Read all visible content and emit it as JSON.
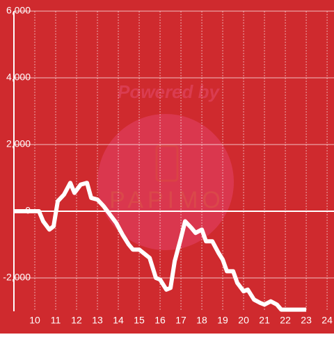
{
  "chart_data": {
    "type": "line",
    "watermark": [
      "Powered by",
      "PAPIMO"
    ],
    "x": [
      9,
      10.2,
      10.4,
      10.7,
      10.9,
      11.1,
      11.4,
      11.7,
      11.9,
      12.2,
      12.5,
      12.7,
      13,
      13.3,
      13.6,
      13.9,
      14.2,
      14.5,
      14.7,
      15,
      15.3,
      15.5,
      15.8,
      16,
      16.3,
      16.5,
      16.7,
      17,
      17.2,
      17.5,
      17.7,
      18,
      18.2,
      18.5,
      18.8,
      19,
      19.2,
      19.5,
      19.7,
      20,
      20.2,
      20.5,
      20.8,
      21,
      21.3,
      21.6,
      21.8,
      22,
      23
    ],
    "series": [
      {
        "color": "#ffffff",
        "values": [
          0,
          0,
          -300,
          -550,
          -450,
          300,
          500,
          850,
          550,
          800,
          850,
          400,
          350,
          150,
          -100,
          -350,
          -700,
          -1000,
          -1150,
          -1150,
          -1300,
          -1400,
          -2000,
          -2050,
          -2350,
          -2300,
          -1500,
          -800,
          -300,
          -500,
          -650,
          -550,
          -900,
          -900,
          -1250,
          -1450,
          -1800,
          -1800,
          -2150,
          -2400,
          -2350,
          -2650,
          -2750,
          -2800,
          -2700,
          -2800,
          -2950,
          -2950,
          -2950
        ]
      }
    ],
    "xlim": [
      9,
      24.33
    ],
    "xticks": [
      10,
      11,
      12,
      13,
      14,
      15,
      16,
      17,
      18,
      19,
      20,
      21,
      22,
      23,
      24
    ],
    "ylim": [
      -3000,
      6000
    ],
    "yticks": [
      {
        "value": -2000,
        "label": "-2,000"
      },
      0,
      {
        "value": 2000,
        "label": "2,000"
      },
      {
        "value": 4000,
        "label": "4,000"
      },
      {
        "value": 6000,
        "label": "6,000"
      }
    ],
    "grid": true,
    "background": "#cf2a2e"
  }
}
